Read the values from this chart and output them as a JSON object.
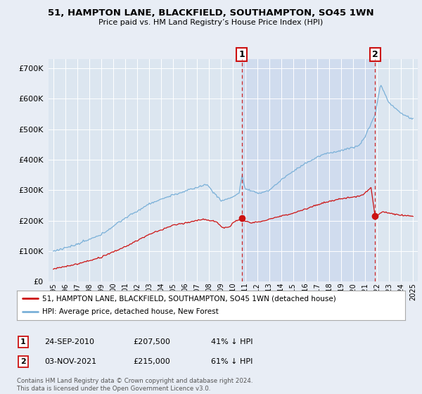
{
  "title": "51, HAMPTON LANE, BLACKFIELD, SOUTHAMPTON, SO45 1WN",
  "subtitle": "Price paid vs. HM Land Registry’s House Price Index (HPI)",
  "background_color": "#e8edf5",
  "plot_bg_color": "#dce6f0",
  "shade_color": "#ccd9ee",
  "line_color_hpi": "#7ab0d8",
  "line_color_price": "#cc1111",
  "marker1_x": 2010.73,
  "marker1_y_price": 207500,
  "marker2_x": 2021.84,
  "marker2_y_price": 215000,
  "ylim": [
    0,
    730000
  ],
  "xlim": [
    1994.6,
    2025.4
  ],
  "yticks": [
    0,
    100000,
    200000,
    300000,
    400000,
    500000,
    600000,
    700000
  ],
  "xticks": [
    1995,
    1996,
    1997,
    1998,
    1999,
    2000,
    2001,
    2002,
    2003,
    2004,
    2005,
    2006,
    2007,
    2008,
    2009,
    2010,
    2011,
    2012,
    2013,
    2014,
    2015,
    2016,
    2017,
    2018,
    2019,
    2020,
    2021,
    2022,
    2023,
    2024,
    2025
  ],
  "legend_label_price": "51, HAMPTON LANE, BLACKFIELD, SOUTHAMPTON, SO45 1WN (detached house)",
  "legend_label_hpi": "HPI: Average price, detached house, New Forest",
  "table": [
    {
      "num": "1",
      "date": "24-SEP-2010",
      "price": "£207,500",
      "hpi": "41% ↓ HPI"
    },
    {
      "num": "2",
      "date": "03-NOV-2021",
      "price": "£215,000",
      "hpi": "61% ↓ HPI"
    }
  ],
  "footer": "Contains HM Land Registry data © Crown copyright and database right 2024.\nThis data is licensed under the Open Government Licence v3.0."
}
